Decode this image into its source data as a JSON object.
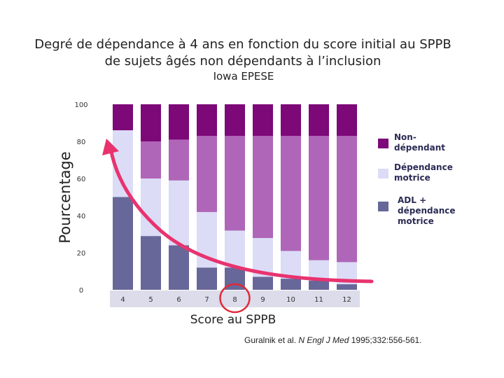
{
  "chart_data": {
    "type": "bar",
    "stacked": true,
    "title_line1": "Degré de dépendance à 4 ans en fonction du score initial au SPPB",
    "title_line2": "de sujets âgés non dépendants à l’inclusion",
    "subtitle": "Iowa EPESE",
    "xlabel": "Score au SPPB",
    "ylabel": "Pourcentage",
    "categories": [
      "4",
      "5",
      "6",
      "7",
      "8",
      "9",
      "10",
      "11",
      "12"
    ],
    "ylim": [
      0,
      100
    ],
    "yticks": [
      "0",
      "20",
      "40",
      "60",
      "80",
      "100"
    ],
    "series": [
      {
        "name": "ADL + dépendance motrice",
        "legend_lines": [
          "ADL +",
          "dépendance",
          "motrice"
        ],
        "color": "#676799",
        "values": [
          50,
          29,
          24,
          12,
          12,
          7,
          6,
          5,
          3
        ]
      },
      {
        "name": "Dépendance motrice",
        "legend_lines": [
          "Dépendance",
          "motrice"
        ],
        "color": "#dcdcf7",
        "values": [
          36,
          31,
          35,
          30,
          20,
          21,
          15,
          11,
          12
        ]
      },
      {
        "name": "Non-dépendant",
        "legend_lines": [
          "Non-",
          "dépendant"
        ],
        "color": "#7d0877",
        "values": [
          14,
          40,
          41,
          58,
          68,
          72,
          79,
          84,
          85
        ]
      }
    ],
    "middle_color": "#b066b8",
    "arrow_color": "#e8336f",
    "highlight_category": "8",
    "legend_position": "right",
    "grid": false,
    "citation_plain": "Guralnik et al. ",
    "citation_italic": "N Engl J Med",
    "citation_rest": " 1995;332:556-561."
  }
}
